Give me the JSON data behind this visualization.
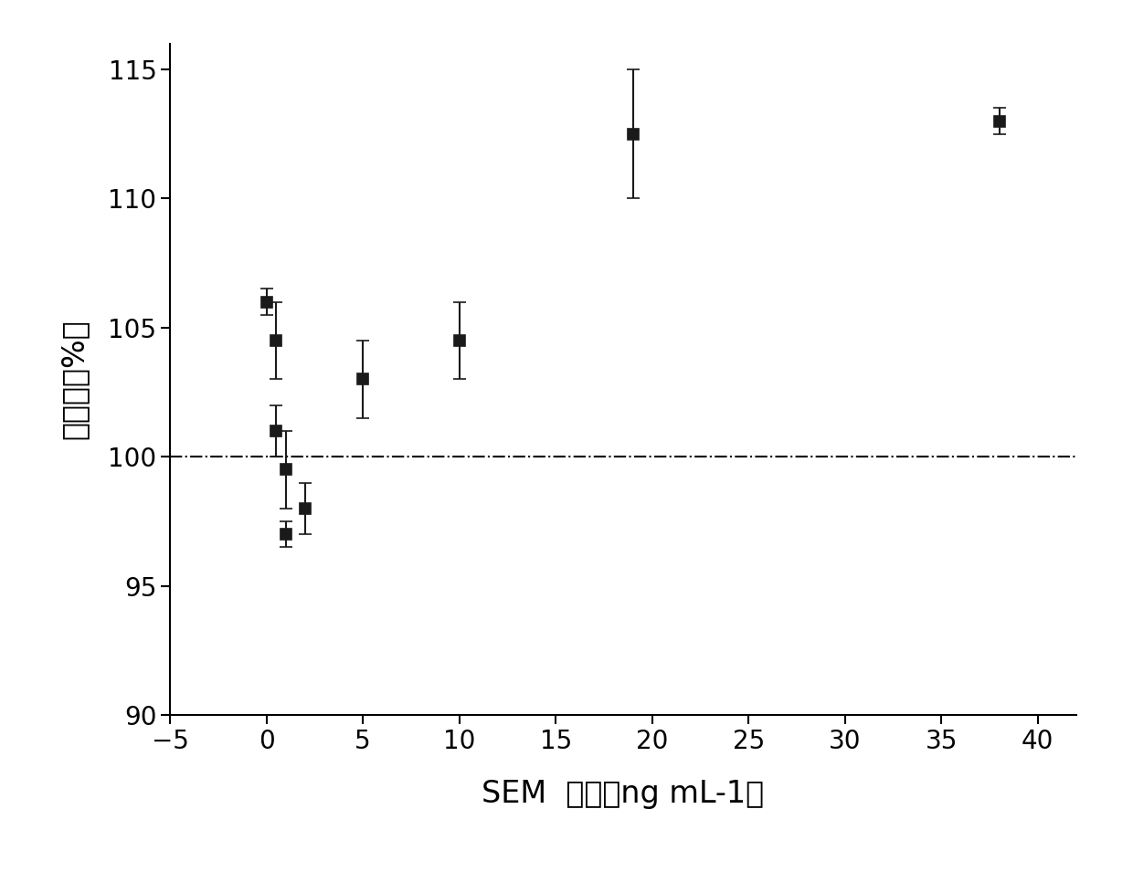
{
  "x": [
    0.0,
    0.5,
    0.5,
    1.0,
    1.0,
    2.0,
    5.0,
    10.0,
    19.0,
    38.0
  ],
  "y": [
    106.0,
    104.5,
    101.0,
    97.0,
    99.5,
    98.0,
    103.0,
    104.5,
    112.5,
    113.0
  ],
  "yerr_low": [
    0.5,
    1.5,
    1.0,
    0.5,
    1.5,
    1.0,
    1.5,
    1.5,
    2.5,
    0.5
  ],
  "yerr_high": [
    0.5,
    1.5,
    1.0,
    0.5,
    1.5,
    1.0,
    1.5,
    1.5,
    2.5,
    0.5
  ],
  "xlim": [
    -5,
    42
  ],
  "ylim": [
    90,
    116
  ],
  "xticks": [
    -5,
    0,
    5,
    10,
    15,
    20,
    25,
    30,
    35,
    40
  ],
  "yticks": [
    90,
    95,
    100,
    105,
    110,
    115
  ],
  "xlabel_parts": [
    "SEM  浓度（ng mL-1）"
  ],
  "ylabel_text": "回收率（%）",
  "hline_y": 100.0,
  "background_color": "#ffffff",
  "marker_color": "#1a1a1a",
  "marker_size": 9,
  "capsize": 5,
  "elinewidth": 1.5,
  "capthick": 1.5,
  "tick_fontsize": 20,
  "label_fontsize": 24
}
